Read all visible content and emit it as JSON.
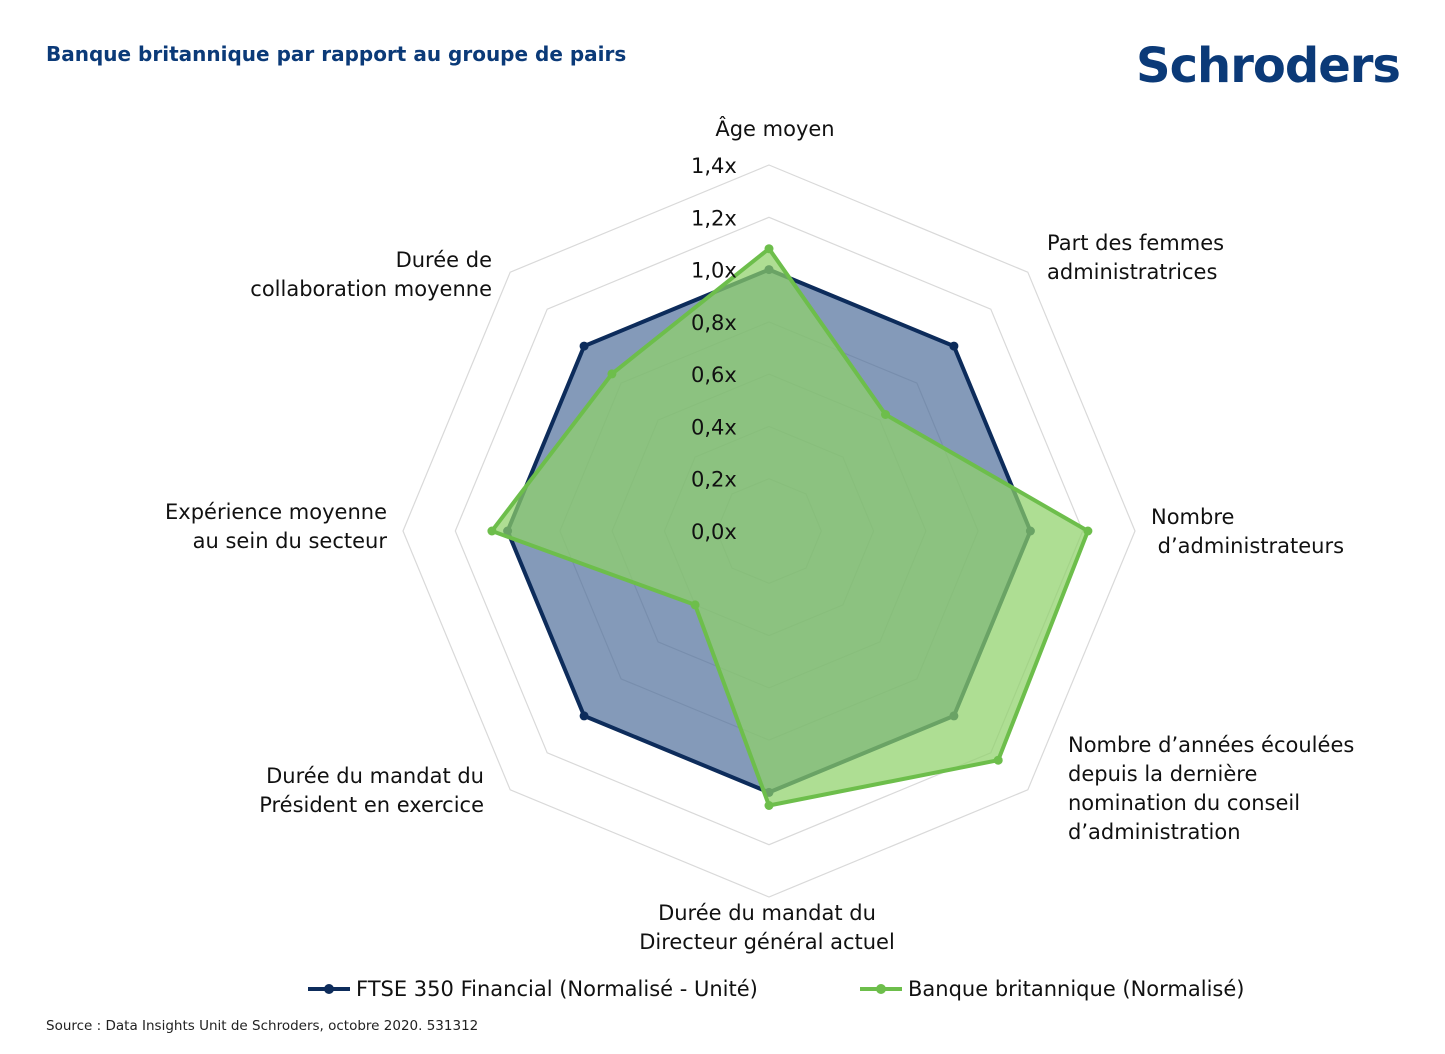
{
  "header": {
    "title": "Banque britannique par rapport au groupe de pairs",
    "logo_text": "Schroders"
  },
  "footer": {
    "source": "Source : Data Insights Unit de Schroders, octobre 2020. 531312"
  },
  "colors": {
    "brand": "#0b3a78",
    "series_ftse_line": "#0d2c5b",
    "series_ftse_fill": "#4a6a98",
    "series_bank_line": "#6dbe4b",
    "series_bank_fill": "#8fd16a",
    "grid": "#d9d9d9"
  },
  "chart_data": {
    "type": "radar",
    "title": "Banque britannique par rapport au groupe de pairs",
    "axes": [
      [
        "Âge moyen"
      ],
      [
        "Part des femmes",
        "administratrices"
      ],
      [
        "Nombre",
        " d’administrateurs"
      ],
      [
        "Nombre d’années écoulées",
        "depuis la dernière",
        "nomination du conseil",
        "d’administration"
      ],
      [
        "Durée du mandat du",
        "Directeur général actuel"
      ],
      [
        "Durée du mandat du",
        "Président en exercice"
      ],
      [
        "Expérience moyenne",
        "au sein du secteur"
      ],
      [
        "Durée de",
        "collaboration moyenne"
      ]
    ],
    "scale": {
      "min": 0,
      "max": 1.4,
      "step": 0.2,
      "tick_labels": [
        "0,0x",
        "0,2x",
        "0,4x",
        "0,6x",
        "0,8x",
        "1,0x",
        "1,2x",
        "1,4x"
      ]
    },
    "grid": true,
    "legend_position": "bottom",
    "series": [
      {
        "name": "FTSE 350 Financial (Normalisé - Unité)",
        "values": [
          1.0,
          1.0,
          1.0,
          1.0,
          1.0,
          1.0,
          1.0,
          1.0
        ]
      },
      {
        "name": "Banque britannique (Normalisé)",
        "values": [
          1.08,
          0.63,
          1.22,
          1.24,
          1.05,
          0.4,
          1.06,
          0.85
        ]
      }
    ]
  }
}
